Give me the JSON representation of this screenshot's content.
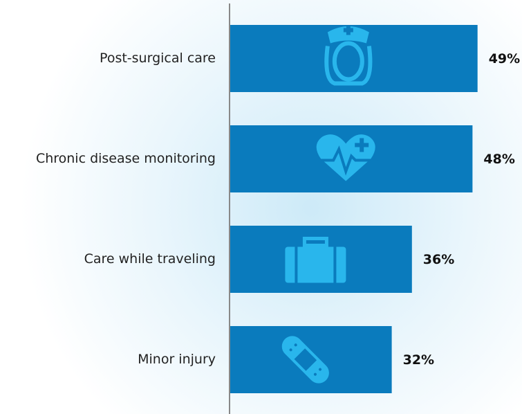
{
  "chart_data": {
    "type": "bar",
    "orientation": "horizontal",
    "categories": [
      "Post-surgical care",
      "Chronic disease monitoring",
      "Care while traveling",
      "Minor injury"
    ],
    "values": [
      49,
      48,
      36,
      32
    ],
    "value_labels": [
      "49%",
      "48%",
      "36%",
      "32%"
    ],
    "color": "#0a7bbd"
  }
}
